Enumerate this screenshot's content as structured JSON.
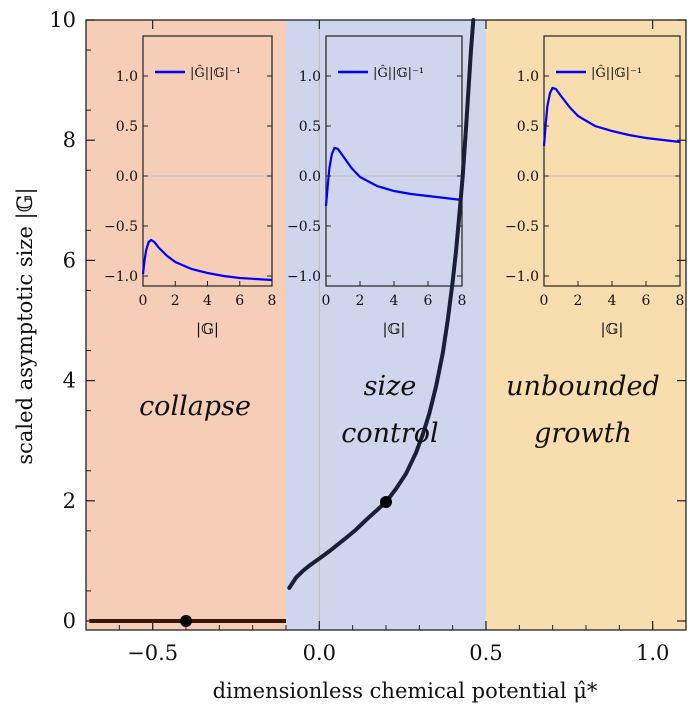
{
  "colors": {
    "collapse_region": "#F6CDB6",
    "size_control_region": "#CFD5EC",
    "unbounded_region": "#F8DDAF",
    "main_curve": "#1A1F38",
    "collapse_line": "#3A1608",
    "inset_curve": "#0000FF",
    "marker": "#000000"
  },
  "chart_data": {
    "type": "line",
    "xlabel": "dimensionless chemical potential μ̂*",
    "ylabel": "scaled asymptotic size |𝔾|",
    "xlim": [
      -0.7,
      1.1
    ],
    "ylim": [
      -0.15,
      10
    ],
    "xticks": [
      -0.5,
      0.0,
      0.5,
      1.0
    ],
    "xtick_labels": [
      "−0.5",
      "0.0",
      "0.5",
      "1.0"
    ],
    "yticks": [
      0,
      2,
      4,
      6,
      8,
      10
    ],
    "ytick_labels": [
      "0",
      "2",
      "4",
      "6",
      "8",
      "10"
    ],
    "regions": [
      {
        "id": "collapse",
        "from": -0.7,
        "to": -0.1,
        "label_lines": [
          "collapse"
        ]
      },
      {
        "id": "size_control",
        "from": -0.1,
        "to": 0.5,
        "label_lines": [
          "size",
          "control"
        ]
      },
      {
        "id": "unbounded",
        "from": 0.5,
        "to": 1.1,
        "label_lines": [
          "unbounded",
          "growth"
        ]
      }
    ],
    "series": [
      {
        "x": [
          -0.09,
          -0.07,
          -0.05,
          -0.03,
          -0.01,
          0.01,
          0.03,
          0.05,
          0.08,
          0.11,
          0.14,
          0.17,
          0.2,
          0.23,
          0.26,
          0.29,
          0.31,
          0.33,
          0.35,
          0.37,
          0.385,
          0.4,
          0.41,
          0.42,
          0.43,
          0.44,
          0.448,
          0.455,
          0.462
        ],
        "y": [
          0.55,
          0.72,
          0.83,
          0.92,
          1.0,
          1.08,
          1.16,
          1.25,
          1.38,
          1.52,
          1.68,
          1.83,
          1.98,
          2.2,
          2.45,
          2.8,
          3.1,
          3.45,
          3.9,
          4.45,
          5.0,
          5.65,
          6.15,
          6.75,
          7.4,
          8.2,
          8.9,
          9.5,
          10.0
        ]
      },
      {
        "x": [
          -0.69,
          -0.1
        ],
        "y": [
          0,
          0
        ]
      }
    ],
    "markers": [
      {
        "x": -0.4,
        "y": 0
      },
      {
        "x": 0.2,
        "y": 1.98
      }
    ],
    "insets": [
      {
        "xlabel": "|𝔾|",
        "xlim": [
          0,
          8
        ],
        "ylim": [
          -1.1,
          1.4
        ],
        "xtick_labels": [
          "0",
          "2",
          "4",
          "6",
          "8"
        ],
        "ytick_labels": [
          "−1.0",
          "−0.5",
          "0.0",
          "0.5",
          "1.0"
        ],
        "legend": "|Ĝ||𝔾|⁻¹",
        "x": [
          0.0,
          0.1,
          0.2,
          0.35,
          0.5,
          0.7,
          1.0,
          1.5,
          2.0,
          3.0,
          4.0,
          5.0,
          6.0,
          7.0,
          8.0
        ],
        "y": [
          -0.98,
          -0.84,
          -0.74,
          -0.66,
          -0.64,
          -0.66,
          -0.72,
          -0.8,
          -0.86,
          -0.93,
          -0.97,
          -1.0,
          -1.02,
          -1.03,
          -1.04
        ]
      },
      {
        "xlabel": "|𝔾|",
        "xlim": [
          0,
          8
        ],
        "ylim": [
          -1.1,
          1.4
        ],
        "xtick_labels": [
          "0",
          "2",
          "4",
          "6",
          "8"
        ],
        "ytick_labels": [
          "−1.0",
          "−0.5",
          "0.0",
          "0.5",
          "1.0"
        ],
        "legend": "|Ĝ||𝔾|⁻¹",
        "x": [
          0.0,
          0.1,
          0.2,
          0.35,
          0.5,
          0.7,
          1.0,
          1.5,
          2.0,
          3.0,
          4.0,
          5.0,
          6.0,
          7.0,
          8.0
        ],
        "y": [
          -0.3,
          -0.1,
          0.08,
          0.22,
          0.28,
          0.27,
          0.2,
          0.08,
          -0.01,
          -0.1,
          -0.15,
          -0.18,
          -0.2,
          -0.22,
          -0.24
        ]
      },
      {
        "xlabel": "|𝔾|",
        "xlim": [
          0,
          8
        ],
        "ylim": [
          -1.1,
          1.4
        ],
        "xtick_labels": [
          "0",
          "2",
          "4",
          "6",
          "8"
        ],
        "ytick_labels": [
          "−1.0",
          "−0.5",
          "0.0",
          "0.5",
          "1.0"
        ],
        "legend": "|Ĝ||𝔾|⁻¹",
        "x": [
          0.0,
          0.1,
          0.2,
          0.35,
          0.5,
          0.7,
          1.0,
          1.5,
          2.0,
          3.0,
          4.0,
          5.0,
          6.0,
          7.0,
          8.0
        ],
        "y": [
          0.3,
          0.52,
          0.7,
          0.83,
          0.88,
          0.87,
          0.8,
          0.69,
          0.6,
          0.5,
          0.45,
          0.41,
          0.38,
          0.36,
          0.34
        ]
      }
    ]
  }
}
